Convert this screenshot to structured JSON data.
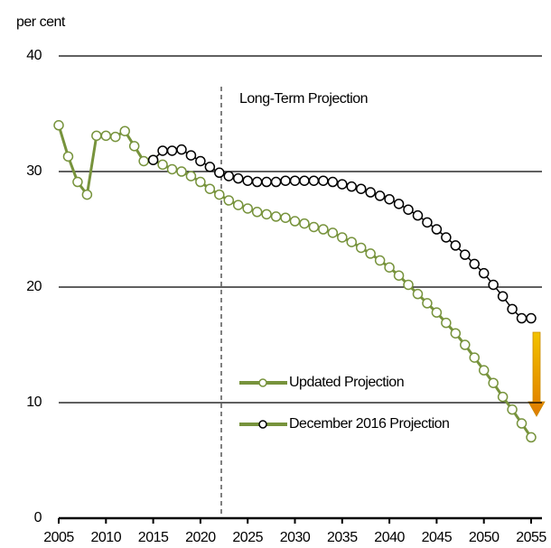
{
  "chart_data": {
    "type": "line",
    "y_label": "per cent",
    "annotation": "Long-Term Projection",
    "x": [
      2005,
      2006,
      2007,
      2008,
      2009,
      2010,
      2011,
      2012,
      2013,
      2014,
      2015,
      2016,
      2017,
      2018,
      2019,
      2020,
      2021,
      2022,
      2023,
      2024,
      2025,
      2026,
      2027,
      2028,
      2029,
      2030,
      2031,
      2032,
      2033,
      2034,
      2035,
      2036,
      2037,
      2038,
      2039,
      2040,
      2041,
      2042,
      2043,
      2044,
      2045,
      2046,
      2047,
      2048,
      2049,
      2050,
      2051,
      2052,
      2053,
      2054,
      2055
    ],
    "series": [
      {
        "name": "Updated Projection",
        "color": "#77933c",
        "values": [
          34.0,
          31.3,
          29.1,
          28.0,
          33.1,
          33.1,
          33.0,
          33.5,
          32.2,
          30.9,
          31.0,
          30.6,
          30.2,
          30.0,
          29.6,
          29.1,
          28.5,
          28.0,
          27.5,
          27.1,
          26.8,
          26.5,
          26.3,
          26.1,
          26.0,
          25.7,
          25.5,
          25.2,
          25.0,
          24.7,
          24.3,
          23.9,
          23.4,
          22.9,
          22.3,
          21.7,
          21.0,
          20.2,
          19.4,
          18.6,
          17.8,
          16.9,
          16.0,
          15.0,
          13.9,
          12.8,
          11.7,
          10.5,
          9.4,
          8.2,
          7.0
        ]
      },
      {
        "name": "December 2016 Projection",
        "color": "#000000",
        "values": [
          null,
          null,
          null,
          null,
          null,
          null,
          null,
          null,
          null,
          null,
          31.0,
          31.8,
          31.8,
          31.9,
          31.4,
          30.9,
          30.4,
          29.9,
          29.6,
          29.4,
          29.2,
          29.1,
          29.1,
          29.1,
          29.2,
          29.2,
          29.2,
          29.2,
          29.2,
          29.1,
          28.9,
          28.7,
          28.5,
          28.2,
          27.9,
          27.6,
          27.2,
          26.7,
          26.2,
          25.6,
          25.0,
          24.3,
          23.6,
          22.8,
          22.0,
          21.2,
          20.2,
          19.2,
          18.1,
          17.3,
          17.3
        ]
      }
    ],
    "xlim": [
      2005,
      2055
    ],
    "xticks": [
      2005,
      2010,
      2015,
      2020,
      2025,
      2030,
      2035,
      2040,
      2045,
      2050,
      2055
    ],
    "ylim": [
      0,
      40
    ],
    "yticks": [
      0,
      10,
      20,
      30,
      40
    ],
    "grid": true
  }
}
